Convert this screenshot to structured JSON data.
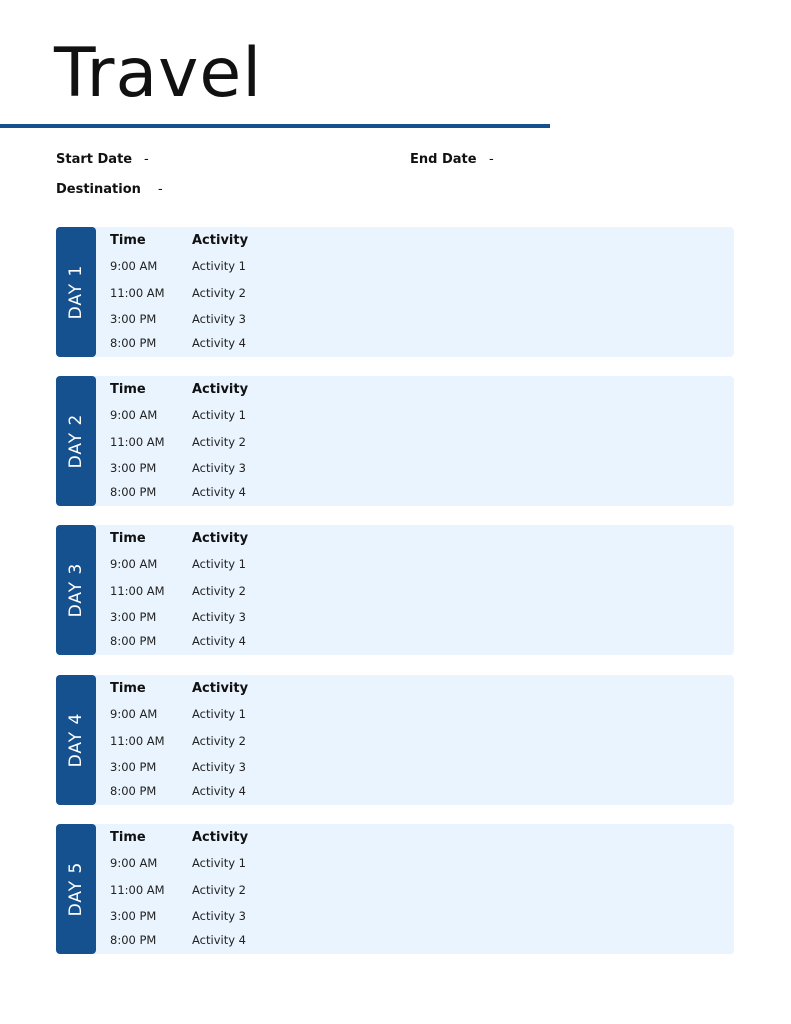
{
  "title": "Travel",
  "fields": {
    "start_date_label": "Start Date",
    "start_date_value": "-",
    "end_date_label": "End Date",
    "end_date_value": "-",
    "destination_label": "Destination",
    "destination_value": "-"
  },
  "colors": {
    "accent": "#15508f",
    "panel": "#eaf4fe"
  },
  "table_headers": {
    "time": "Time",
    "activity": "Activity"
  },
  "days": [
    {
      "label": "DAY 1",
      "rows": [
        {
          "time": "9:00 AM",
          "activity": "Activity 1"
        },
        {
          "time": "11:00 AM",
          "activity": "Activity 2"
        },
        {
          "time": "3:00 PM",
          "activity": "Activity 3"
        },
        {
          "time": "8:00 PM",
          "activity": "Activity 4"
        }
      ]
    },
    {
      "label": "DAY 2",
      "rows": [
        {
          "time": "9:00 AM",
          "activity": "Activity 1"
        },
        {
          "time": "11:00 AM",
          "activity": "Activity 2"
        },
        {
          "time": "3:00 PM",
          "activity": "Activity 3"
        },
        {
          "time": "8:00 PM",
          "activity": "Activity 4"
        }
      ]
    },
    {
      "label": "DAY 3",
      "rows": [
        {
          "time": "9:00 AM",
          "activity": "Activity 1"
        },
        {
          "time": "11:00 AM",
          "activity": "Activity 2"
        },
        {
          "time": "3:00 PM",
          "activity": "Activity 3"
        },
        {
          "time": "8:00 PM",
          "activity": "Activity 4"
        }
      ]
    },
    {
      "label": "DAY 4",
      "rows": [
        {
          "time": "9:00 AM",
          "activity": "Activity 1"
        },
        {
          "time": "11:00 AM",
          "activity": "Activity 2"
        },
        {
          "time": "3:00 PM",
          "activity": "Activity 3"
        },
        {
          "time": "8:00 PM",
          "activity": "Activity 4"
        }
      ]
    },
    {
      "label": "DAY 5",
      "rows": [
        {
          "time": "9:00 AM",
          "activity": "Activity 1"
        },
        {
          "time": "11:00 AM",
          "activity": "Activity 2"
        },
        {
          "time": "3:00 PM",
          "activity": "Activity 3"
        },
        {
          "time": "8:00 PM",
          "activity": "Activity 4"
        }
      ]
    }
  ]
}
